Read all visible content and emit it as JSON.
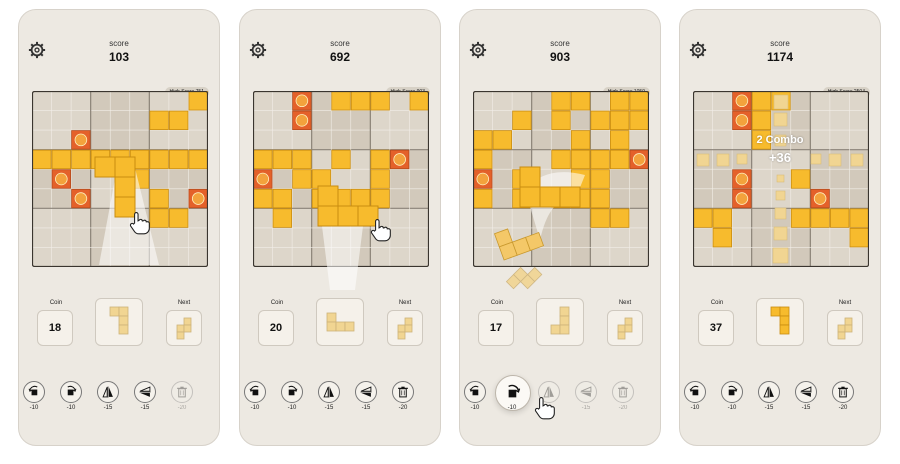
{
  "colors": {
    "background": "#ede9e2",
    "board": "#ddd6ca",
    "cell_line": "#f2eee8",
    "block": "#f7bb2d",
    "block_edge": "#c98c10",
    "coin_block": "#e4612a",
    "coin_face": "#f3a23c",
    "preview": "#f1d592"
  },
  "screens": [
    {
      "score_label": "score",
      "score": "103",
      "high_score": "High Score 751",
      "coin_label": "Coin",
      "coin": "18",
      "next_label": "Next",
      "tools": [
        {
          "icon": "rotate-left-icon",
          "cost": "-10"
        },
        {
          "icon": "rotate-right-icon",
          "cost": "-10"
        },
        {
          "icon": "flip-horizontal-icon",
          "cost": "-15"
        },
        {
          "icon": "flip-vertical-icon",
          "cost": "-15"
        },
        {
          "icon": "trash-icon",
          "cost": "-20"
        }
      ],
      "board": [
        ".......bb.",
        "......bb..",
        ".c........",
        "bbb..bbbbb",
        "bc..b.....",
        ".c..b...c.",
        "....bb.bb.",
        "........bb",
        "..........",
        "..........."
      ]
    },
    {
      "score_label": "score",
      "score": "692",
      "high_score": "High Score 903",
      "coin_label": "Coin",
      "coin": "20",
      "next_label": "Next",
      "tools": [
        {
          "icon": "rotate-left-icon",
          "cost": "-10"
        },
        {
          "icon": "rotate-right-icon",
          "cost": "-10"
        },
        {
          "icon": "flip-horizontal-icon",
          "cost": "-15"
        },
        {
          "icon": "flip-vertical-icon",
          "cost": "-15"
        },
        {
          "icon": "trash-icon",
          "cost": "-20"
        }
      ]
    },
    {
      "score_label": "score",
      "score": "903",
      "high_score": "High Score 1059",
      "coin_label": "Coin",
      "coin": "17",
      "next_label": "Next",
      "tools": [
        {
          "icon": "rotate-left-icon",
          "cost": "-10"
        },
        {
          "icon": "rotate-right-icon",
          "cost": "-10"
        },
        {
          "icon": "flip-horizontal-icon",
          "cost": "-15"
        },
        {
          "icon": "flip-vertical-icon",
          "cost": "-15"
        },
        {
          "icon": "trash-icon",
          "cost": "-20"
        }
      ]
    },
    {
      "score_label": "score",
      "score": "1174",
      "high_score": "High Score 2504",
      "coin_label": "Coin",
      "coin": "37",
      "next_label": "Next",
      "combo": "2 Combo",
      "combo_points": "+36",
      "tools": [
        {
          "icon": "rotate-left-icon",
          "cost": "-10"
        },
        {
          "icon": "rotate-right-icon",
          "cost": "-10"
        },
        {
          "icon": "flip-horizontal-icon",
          "cost": "-15"
        },
        {
          "icon": "flip-vertical-icon",
          "cost": "-15"
        },
        {
          "icon": "trash-icon",
          "cost": "-20"
        }
      ]
    }
  ],
  "boards": [
    [
      "........bb",
      "......bb..",
      "..c.......",
      "bbbbbbbbb.",
      ".c...b....",
      "..c...b.c.",
      "......bb..",
      "..........",
      "..........",
      "..........",
      ".........."
    ],
    [
      "..c.bbb.b.",
      "..c......b",
      ".........c",
      "bbb.b.bc..",
      "c.bb..b...",
      "bb.bbbb...",
      ".b........",
      "..........",
      ".........."
    ],
    [
      "....bb.bb.",
      "..b.b.bbbb",
      "bb...b.b..",
      "b...bbbbcc",
      "c.b..bb...",
      "b.b.bbb...",
      "......bb..",
      ".........."
    ],
    [
      "..cbb.....",
      "..cb.....b",
      "...b.....b",
      "..........",
      "..c..b....",
      "..c...c...",
      "bb...bbbbb",
      ".b......bb",
      "..........."
    ]
  ]
}
